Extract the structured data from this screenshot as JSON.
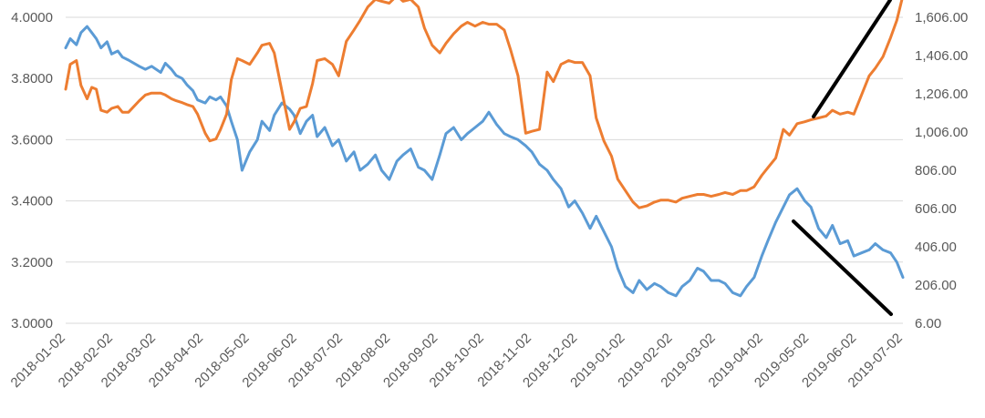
{
  "chart_data": {
    "type": "line",
    "title": "",
    "xlabel": "",
    "ylabel_left": "",
    "ylabel_right": "",
    "grid": true,
    "legend": "none",
    "x_ticks": [
      "2018-01-02",
      "2018-02-02",
      "2018-03-02",
      "2018-04-02",
      "2018-05-02",
      "2018-06-02",
      "2018-07-02",
      "2018-08-02",
      "2018-09-02",
      "2018-10-02",
      "2018-11-02",
      "2018-12-02",
      "2019-01-02",
      "2019-02-02",
      "2019-03-02",
      "2019-04-02",
      "2019-05-02",
      "2019-06-02",
      "2019-07-02"
    ],
    "x_range": [
      "2018-01-02",
      "2019-07-02"
    ],
    "left_axis": {
      "ylim": [
        3.0,
        4.0
      ],
      "ticks": [
        "3.0000",
        "3.2000",
        "3.4000",
        "3.6000",
        "3.8000",
        "4.0000"
      ]
    },
    "right_axis": {
      "ylim": [
        6,
        1606
      ],
      "ticks": [
        "6.00",
        "206.00",
        "406.00",
        "606.00",
        "806.00",
        "1,006.00",
        "1,206.00",
        "1,406.00",
        "1,606.00"
      ]
    },
    "series": [
      {
        "axis": "left",
        "color": "#5b9bd5",
        "x": [
          "2018-01-02",
          "2018-01-05",
          "2018-01-09",
          "2018-01-12",
          "2018-01-16",
          "2018-01-19",
          "2018-01-22",
          "2018-01-25",
          "2018-01-29",
          "2018-02-01",
          "2018-02-05",
          "2018-02-08",
          "2018-02-12",
          "2018-02-19",
          "2018-02-23",
          "2018-02-27",
          "2018-03-05",
          "2018-03-08",
          "2018-03-12",
          "2018-03-15",
          "2018-03-19",
          "2018-03-22",
          "2018-03-26",
          "2018-03-29",
          "2018-04-03",
          "2018-04-06",
          "2018-04-10",
          "2018-04-13",
          "2018-04-17",
          "2018-04-20",
          "2018-04-24",
          "2018-04-27",
          "2018-05-02",
          "2018-05-07",
          "2018-05-10",
          "2018-05-15",
          "2018-05-18",
          "2018-05-23",
          "2018-05-28",
          "2018-05-31",
          "2018-06-04",
          "2018-06-08",
          "2018-06-12",
          "2018-06-15",
          "2018-06-20",
          "2018-06-25",
          "2018-06-29",
          "2018-07-04",
          "2018-07-09",
          "2018-07-13",
          "2018-07-18",
          "2018-07-23",
          "2018-07-27",
          "2018-08-01",
          "2018-08-06",
          "2018-08-10",
          "2018-08-15",
          "2018-08-20",
          "2018-08-24",
          "2018-08-29",
          "2018-09-03",
          "2018-09-07",
          "2018-09-12",
          "2018-09-17",
          "2018-09-21",
          "2018-09-26",
          "2018-10-01",
          "2018-10-05",
          "2018-10-10",
          "2018-10-15",
          "2018-10-19",
          "2018-10-24",
          "2018-10-29",
          "2018-11-02",
          "2018-11-07",
          "2018-11-12",
          "2018-11-16",
          "2018-11-21",
          "2018-11-26",
          "2018-11-30",
          "2018-12-05",
          "2018-12-10",
          "2018-12-14",
          "2018-12-19",
          "2018-12-24",
          "2018-12-28",
          "2019-01-02",
          "2019-01-07",
          "2019-01-11",
          "2019-01-16",
          "2019-01-21",
          "2019-01-25",
          "2019-01-30",
          "2019-02-04",
          "2019-02-08",
          "2019-02-13",
          "2019-02-18",
          "2019-02-22",
          "2019-02-27",
          "2019-03-04",
          "2019-03-08",
          "2019-03-13",
          "2019-03-18",
          "2019-03-22",
          "2019-03-27",
          "2019-04-01",
          "2019-04-05",
          "2019-04-10",
          "2019-04-15",
          "2019-04-19",
          "2019-04-24",
          "2019-04-29",
          "2019-05-03",
          "2019-05-08",
          "2019-05-13",
          "2019-05-17",
          "2019-05-22",
          "2019-05-27",
          "2019-05-31",
          "2019-06-05",
          "2019-06-10",
          "2019-06-14",
          "2019-06-19",
          "2019-06-24",
          "2019-06-28",
          "2019-07-02"
        ],
        "y": [
          3.9,
          3.93,
          3.91,
          3.95,
          3.97,
          3.95,
          3.93,
          3.9,
          3.92,
          3.88,
          3.89,
          3.87,
          3.86,
          3.84,
          3.83,
          3.84,
          3.82,
          3.85,
          3.83,
          3.81,
          3.8,
          3.78,
          3.76,
          3.73,
          3.72,
          3.74,
          3.73,
          3.74,
          3.71,
          3.66,
          3.6,
          3.5,
          3.56,
          3.6,
          3.66,
          3.63,
          3.68,
          3.72,
          3.7,
          3.68,
          3.62,
          3.66,
          3.68,
          3.61,
          3.64,
          3.58,
          3.6,
          3.53,
          3.56,
          3.5,
          3.52,
          3.55,
          3.5,
          3.47,
          3.53,
          3.55,
          3.57,
          3.51,
          3.5,
          3.47,
          3.55,
          3.62,
          3.64,
          3.6,
          3.62,
          3.64,
          3.66,
          3.69,
          3.65,
          3.62,
          3.61,
          3.6,
          3.58,
          3.56,
          3.52,
          3.5,
          3.47,
          3.44,
          3.38,
          3.4,
          3.36,
          3.31,
          3.35,
          3.3,
          3.25,
          3.18,
          3.12,
          3.1,
          3.14,
          3.11,
          3.13,
          3.12,
          3.1,
          3.09,
          3.12,
          3.14,
          3.18,
          3.17,
          3.14,
          3.14,
          3.13,
          3.1,
          3.09,
          3.12,
          3.15,
          3.22,
          3.27,
          3.33,
          3.38,
          3.42,
          3.44,
          3.4,
          3.38,
          3.31,
          3.28,
          3.32,
          3.26,
          3.27,
          3.22,
          3.23,
          3.24,
          3.26,
          3.24,
          3.23,
          3.2,
          3.15
        ]
      },
      {
        "axis": "right",
        "color": "#ed7d31",
        "x": [
          "2018-01-02",
          "2018-01-05",
          "2018-01-09",
          "2018-01-12",
          "2018-01-16",
          "2018-01-19",
          "2018-01-22",
          "2018-01-25",
          "2018-01-29",
          "2018-02-01",
          "2018-02-05",
          "2018-02-08",
          "2018-02-12",
          "2018-02-19",
          "2018-02-23",
          "2018-02-27",
          "2018-03-05",
          "2018-03-08",
          "2018-03-12",
          "2018-03-15",
          "2018-03-19",
          "2018-03-22",
          "2018-03-26",
          "2018-03-29",
          "2018-04-03",
          "2018-04-06",
          "2018-04-10",
          "2018-04-13",
          "2018-04-17",
          "2018-04-20",
          "2018-04-24",
          "2018-04-27",
          "2018-05-02",
          "2018-05-07",
          "2018-05-10",
          "2018-05-15",
          "2018-05-18",
          "2018-05-23",
          "2018-05-28",
          "2018-05-31",
          "2018-06-04",
          "2018-06-08",
          "2018-06-12",
          "2018-06-15",
          "2018-06-20",
          "2018-06-25",
          "2018-06-29",
          "2018-07-04",
          "2018-07-09",
          "2018-07-13",
          "2018-07-18",
          "2018-07-23",
          "2018-07-27",
          "2018-08-01",
          "2018-08-06",
          "2018-08-10",
          "2018-08-15",
          "2018-08-20",
          "2018-08-24",
          "2018-08-29",
          "2018-09-03",
          "2018-09-07",
          "2018-09-12",
          "2018-09-17",
          "2018-09-21",
          "2018-09-26",
          "2018-10-01",
          "2018-10-05",
          "2018-10-10",
          "2018-10-15",
          "2018-10-19",
          "2018-10-24",
          "2018-10-29",
          "2018-11-02",
          "2018-11-07",
          "2018-11-12",
          "2018-11-16",
          "2018-11-21",
          "2018-11-26",
          "2018-11-30",
          "2018-12-05",
          "2018-12-10",
          "2018-12-14",
          "2018-12-19",
          "2018-12-24",
          "2018-12-28",
          "2019-01-02",
          "2019-01-07",
          "2019-01-11",
          "2019-01-16",
          "2019-01-21",
          "2019-01-25",
          "2019-01-30",
          "2019-02-04",
          "2019-02-08",
          "2019-02-13",
          "2019-02-18",
          "2019-02-22",
          "2019-02-27",
          "2019-03-04",
          "2019-03-08",
          "2019-03-13",
          "2019-03-18",
          "2019-03-22",
          "2019-03-27",
          "2019-04-01",
          "2019-04-05",
          "2019-04-10",
          "2019-04-15",
          "2019-04-19",
          "2019-04-24",
          "2019-04-29",
          "2019-05-03",
          "2019-05-08",
          "2019-05-13",
          "2019-05-17",
          "2019-05-22",
          "2019-05-27",
          "2019-05-31",
          "2019-06-05",
          "2019-06-10",
          "2019-06-14",
          "2019-06-19",
          "2019-06-24",
          "2019-06-28",
          "2019-07-02"
        ],
        "y": [
          1230,
          1360,
          1380,
          1250,
          1180,
          1240,
          1230,
          1120,
          1110,
          1130,
          1140,
          1110,
          1110,
          1170,
          1200,
          1210,
          1210,
          1200,
          1180,
          1170,
          1160,
          1150,
          1140,
          1100,
          1000,
          960,
          970,
          1020,
          1100,
          1280,
          1390,
          1380,
          1360,
          1420,
          1460,
          1470,
          1420,
          1220,
          1020,
          1060,
          1130,
          1140,
          1260,
          1380,
          1390,
          1360,
          1300,
          1480,
          1540,
          1590,
          1660,
          1700,
          1690,
          1680,
          1720,
          1690,
          1700,
          1660,
          1550,
          1460,
          1420,
          1470,
          1520,
          1560,
          1580,
          1560,
          1580,
          1570,
          1570,
          1540,
          1440,
          1300,
          1000,
          1010,
          1020,
          1320,
          1270,
          1360,
          1380,
          1370,
          1370,
          1300,
          1080,
          960,
          880,
          760,
          700,
          640,
          610,
          620,
          640,
          650,
          650,
          640,
          660,
          670,
          680,
          680,
          670,
          680,
          690,
          680,
          700,
          700,
          720,
          780,
          820,
          870,
          1020,
          990,
          1050,
          1060,
          1070,
          1080,
          1090,
          1120,
          1100,
          1110,
          1100,
          1200,
          1300,
          1340,
          1400,
          1500,
          1590,
          1720
        ]
      }
    ]
  }
}
